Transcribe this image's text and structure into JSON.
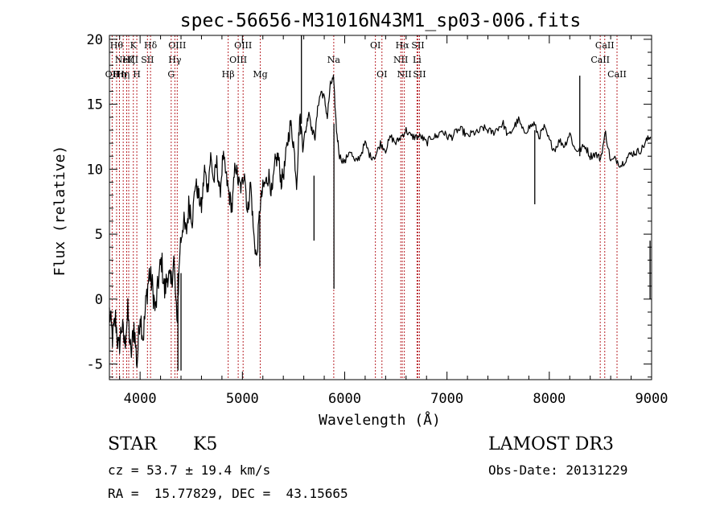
{
  "chart_data": {
    "type": "line",
    "title": "spec-56656-M31016N43M1_sp03-006.fits",
    "xlabel": "Wavelength (Å)",
    "ylabel": "Flux (relative)",
    "xlim": [
      3700,
      9000
    ],
    "ylim": [
      -6.2,
      20.3
    ],
    "x_ticks": [
      4000,
      5000,
      6000,
      7000,
      8000,
      9000
    ],
    "y_ticks": [
      -5,
      0,
      5,
      10,
      15,
      20
    ],
    "series": [
      {
        "name": "spectrum",
        "color": "#000000",
        "x": [
          3700,
          3730,
          3760,
          3790,
          3820,
          3850,
          3880,
          3910,
          3940,
          3970,
          4000,
          4030,
          4060,
          4090,
          4120,
          4150,
          4180,
          4210,
          4240,
          4270,
          4300,
          4330,
          4360,
          4390,
          4420,
          4450,
          4480,
          4510,
          4540,
          4570,
          4600,
          4630,
          4660,
          4690,
          4720,
          4750,
          4780,
          4810,
          4840,
          4870,
          4900,
          4930,
          4960,
          4990,
          5020,
          5050,
          5080,
          5110,
          5140,
          5170,
          5200,
          5230,
          5260,
          5290,
          5320,
          5350,
          5380,
          5410,
          5440,
          5470,
          5500,
          5530,
          5560,
          5590,
          5620,
          5650,
          5680,
          5710,
          5740,
          5770,
          5800,
          5830,
          5860,
          5890,
          5920,
          5950,
          6000,
          6050,
          6100,
          6150,
          6200,
          6250,
          6300,
          6350,
          6400,
          6450,
          6500,
          6550,
          6600,
          6650,
          6700,
          6750,
          6800,
          6850,
          6900,
          6950,
          7000,
          7050,
          7100,
          7150,
          7200,
          7250,
          7300,
          7350,
          7400,
          7450,
          7500,
          7550,
          7600,
          7650,
          7700,
          7750,
          7800,
          7850,
          7900,
          7950,
          8000,
          8050,
          8100,
          8150,
          8200,
          8250,
          8300,
          8350,
          8400,
          8450,
          8500,
          8550,
          8600,
          8650,
          8700,
          8750,
          8800,
          8850,
          8900,
          8950,
          8990
        ],
        "y": [
          -1,
          -3,
          -1.5,
          -4,
          -2,
          -3.5,
          -1,
          -4.5,
          -2,
          -5,
          -1,
          -3,
          0,
          2,
          1,
          -1,
          1.5,
          3,
          0.5,
          2,
          1,
          3,
          -2,
          4,
          6,
          5,
          7.5,
          6,
          9,
          8,
          7,
          10,
          8.5,
          11,
          9,
          10.5,
          8,
          11,
          9.5,
          8,
          7,
          10.5,
          9,
          8.5,
          10,
          6.5,
          9,
          5,
          3,
          7,
          8.5,
          9,
          9.5,
          8,
          10.5,
          11,
          9,
          10,
          12,
          13.5,
          12,
          9,
          14,
          12,
          13,
          14.5,
          13,
          12.5,
          15,
          16,
          15.5,
          14,
          16.5,
          17,
          13,
          11,
          10.5,
          11.5,
          10.5,
          11,
          12,
          11,
          11,
          12,
          11.5,
          12.5,
          12,
          12.5,
          13,
          12.5,
          12.5,
          12.5,
          12,
          12.5,
          12.5,
          13,
          12.5,
          12.5,
          13,
          13,
          12.5,
          12.8,
          12.8,
          13.2,
          13,
          12.8,
          13.2,
          13.5,
          12.5,
          13.2,
          13.8,
          12.8,
          13.2,
          13.5,
          12.5,
          13.2,
          12.2,
          11.5,
          12.2,
          11.8,
          12.8,
          11.5,
          11.5,
          11.8,
          11,
          11.2,
          10.8,
          12.8,
          10.6,
          10.8,
          10.3,
          10.8,
          11.2,
          11.3,
          11.5,
          12.2,
          12.5
        ]
      }
    ],
    "spike_segments": [
      {
        "x": 5577,
        "y_top": 20.3,
        "y_bottom": 13.5
      },
      {
        "x": 5895,
        "y_top": 13.5,
        "y_bottom": 0.8
      },
      {
        "x": 5700,
        "y_top": 9.5,
        "y_bottom": 4.5
      },
      {
        "x": 7858,
        "y_top": 13.0,
        "y_bottom": 7.3
      },
      {
        "x": 8298,
        "y_top": 17.2,
        "y_bottom": 11.0
      },
      {
        "x": 4370,
        "y_top": 2.0,
        "y_bottom": -5.5
      },
      {
        "x": 4400,
        "y_top": 2.0,
        "y_bottom": -5.5
      },
      {
        "x": 5170,
        "y_top": 6.5,
        "y_bottom": 2.5
      },
      {
        "x": 8985,
        "y_top": 4.5,
        "y_bottom": 0.0
      }
    ],
    "lines_color": "#b8242a",
    "spectral_lines": [
      {
        "x": 3727,
        "label": "OII",
        "row": 2
      },
      {
        "x": 3770,
        "label": "Hθ",
        "row": 0
      },
      {
        "x": 3798,
        "label": "Hη",
        "row": 2
      },
      {
        "x": 3835,
        "label": "Hη",
        "row": 2
      },
      {
        "x": 3869,
        "label": "NeIII",
        "row": 1
      },
      {
        "x": 3889,
        "label": "Hζ",
        "row": 1
      },
      {
        "x": 3934,
        "label": "K",
        "row": 0
      },
      {
        "x": 3968,
        "label": "H",
        "row": 2
      },
      {
        "x": 4072,
        "label": "SII",
        "row": 1
      },
      {
        "x": 4102,
        "label": "Hδ",
        "row": 0
      },
      {
        "x": 4304,
        "label": "G",
        "row": 2
      },
      {
        "x": 4340,
        "label": "Hγ",
        "row": 1
      },
      {
        "x": 4363,
        "label": "OIII",
        "row": 0
      },
      {
        "x": 4861,
        "label": "Hβ",
        "row": 2
      },
      {
        "x": 4959,
        "label": "OIII",
        "row": 1
      },
      {
        "x": 5007,
        "label": "OIII",
        "row": 0
      },
      {
        "x": 5175,
        "label": "Mg",
        "row": 2
      },
      {
        "x": 5893,
        "label": "Na",
        "row": 1
      },
      {
        "x": 6300,
        "label": "OI",
        "row": 0
      },
      {
        "x": 6364,
        "label": "OI",
        "row": 2
      },
      {
        "x": 6548,
        "label": "NII",
        "row": 1
      },
      {
        "x": 6563,
        "label": "Hα",
        "row": 0
      },
      {
        "x": 6583,
        "label": "NII",
        "row": 2
      },
      {
        "x": 6707,
        "label": "Li",
        "row": 1
      },
      {
        "x": 6716,
        "label": "SII",
        "row": 0
      },
      {
        "x": 6731,
        "label": "SII",
        "row": 2
      },
      {
        "x": 8498,
        "label": "CaII",
        "row": 1
      },
      {
        "x": 8542,
        "label": "CaII",
        "row": 0
      },
      {
        "x": 8662,
        "label": "CaII",
        "row": 2
      }
    ]
  },
  "info": {
    "class_type": "STAR",
    "subclass": "K5",
    "survey": "LAMOST DR3",
    "cz_line": "cz = 53.7 ± 19.4 km/s",
    "obs_date_line": "Obs-Date: 20131229",
    "coords_line": "RA =  15.77829, DEC =  43.15665"
  }
}
